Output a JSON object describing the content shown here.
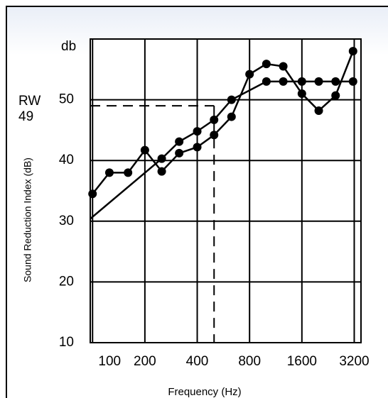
{
  "chart_data": {
    "type": "line",
    "xlabel": "Frequency (Hz)",
    "ylabel": "Sound Reduction Index (dB)",
    "y_unit": "db",
    "log_x": true,
    "grid": true,
    "xlim": [
      97,
      3500
    ],
    "ylim": [
      10,
      60
    ],
    "xticks": [
      100,
      200,
      400,
      800,
      1600,
      3200
    ],
    "yticks": [
      10,
      20,
      30,
      40,
      50
    ],
    "series": [
      {
        "color": "#000000",
        "x": [
          100,
          125,
          160,
          200,
          250,
          315,
          400,
          500,
          630,
          800,
          1000,
          1250,
          1600,
          2000,
          2500,
          3150
        ],
        "values": [
          34.5,
          38,
          38,
          41.7,
          38.2,
          41.2,
          42.2,
          44.2,
          47.2,
          54.2,
          55.9,
          55.5,
          51,
          48.2,
          50.7,
          58
        ]
      },
      {
        "color": "#000000",
        "x": [
          97,
          250,
          315,
          400,
          500,
          630,
          1000,
          1250,
          1600,
          2000,
          2500,
          3150
        ],
        "values": [
          30.4,
          40.3,
          43.1,
          44.8,
          46.7,
          50,
          53,
          53,
          53,
          53,
          53,
          53
        ]
      }
    ],
    "rating": {
      "label": "RW",
      "value": 49,
      "frequency": 500
    }
  }
}
